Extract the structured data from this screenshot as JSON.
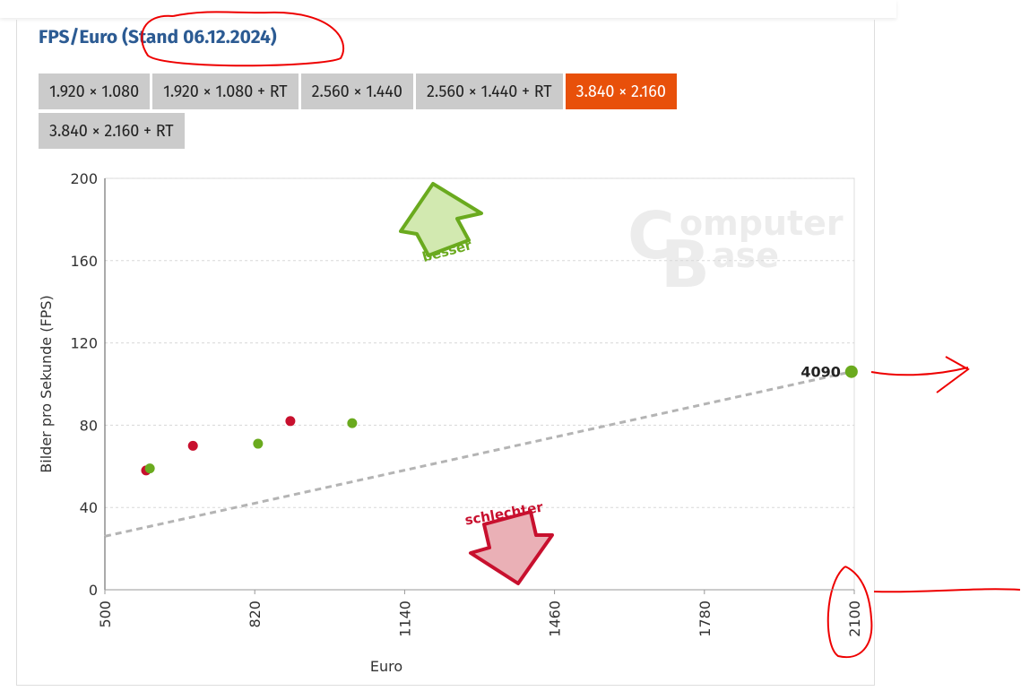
{
  "chart_data": {
    "type": "scatter",
    "title": "FPS/Euro (Stand 06.12.2024)",
    "tabs": [
      "1.920 × 1.080",
      "1.920 × 1.080 + RT",
      "2.560 × 1.440",
      "2.560 × 1.440 + RT",
      "3.840 × 2.160",
      "3.840 × 2.160 + RT"
    ],
    "active_tab": 4,
    "x_label": "Euro",
    "y_label": "Bilder pro Sekunde (FPS)",
    "xlim": [
      500,
      2100
    ],
    "xticks": [
      500,
      820,
      1140,
      1460,
      1780,
      2100
    ],
    "ylim": [
      0,
      200
    ],
    "yticks": [
      0,
      40,
      80,
      120,
      160,
      200
    ],
    "grid": true,
    "series": [
      {
        "color": "#c8102e",
        "x": [
          588,
          688,
          896
        ],
        "values": [
          58,
          70,
          82
        ]
      },
      {
        "color": "#6aaa1e",
        "x": [
          596,
          827,
          1028,
          2094
        ],
        "values": [
          59,
          71,
          81,
          106
        ],
        "labels": [
          null,
          null,
          null,
          "4090"
        ]
      }
    ],
    "trendline": {
      "color": "#b4b4b4",
      "x": [
        500,
        2094
      ],
      "y": [
        26,
        106
      ]
    },
    "annotations": {
      "better": "besser",
      "worse": "schlechter"
    },
    "watermark": [
      "C",
      "omputer",
      "B",
      "ase"
    ]
  }
}
